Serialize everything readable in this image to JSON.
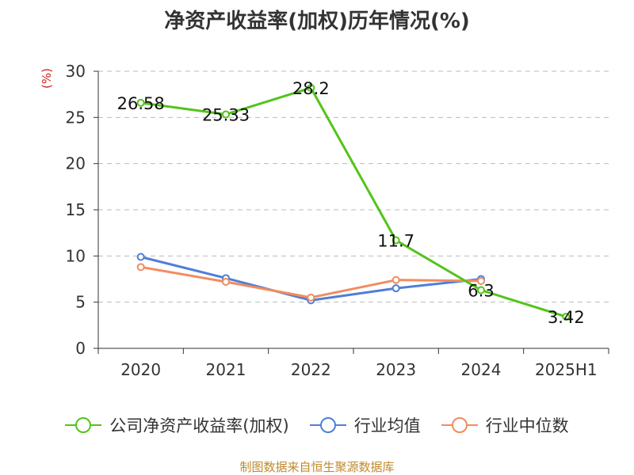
{
  "title": "净资产收益率(加权)历年情况(%)",
  "unit": "(%)",
  "source": "制图数据来自恒生聚源数据库",
  "colors": {
    "company": "#52c41a",
    "avg": "#4f7fd6",
    "median": "#f28c5e",
    "grid": "#bbbbbb",
    "axis": "#333333"
  },
  "chart_data": {
    "type": "line",
    "categories": [
      "2020",
      "2021",
      "2022",
      "2023",
      "2024",
      "2025H1"
    ],
    "ylim": [
      0,
      30
    ],
    "yticks": [
      0,
      5,
      10,
      15,
      20,
      25,
      30
    ],
    "grid": true,
    "legend_position": "bottom",
    "series": [
      {
        "name": "公司净资产收益率(加权)",
        "color": "#52c41a",
        "values": [
          26.58,
          25.33,
          28.2,
          11.7,
          6.3,
          3.42
        ],
        "labels": [
          "26.58",
          "25.33",
          "28.2",
          "11.7",
          "6.3",
          "3.42"
        ]
      },
      {
        "name": "行业均值",
        "color": "#4f7fd6",
        "values": [
          9.9,
          7.6,
          5.2,
          6.5,
          7.5,
          null
        ]
      },
      {
        "name": "行业中位数",
        "color": "#f28c5e",
        "values": [
          8.8,
          7.2,
          5.5,
          7.4,
          7.3,
          null
        ]
      }
    ]
  }
}
